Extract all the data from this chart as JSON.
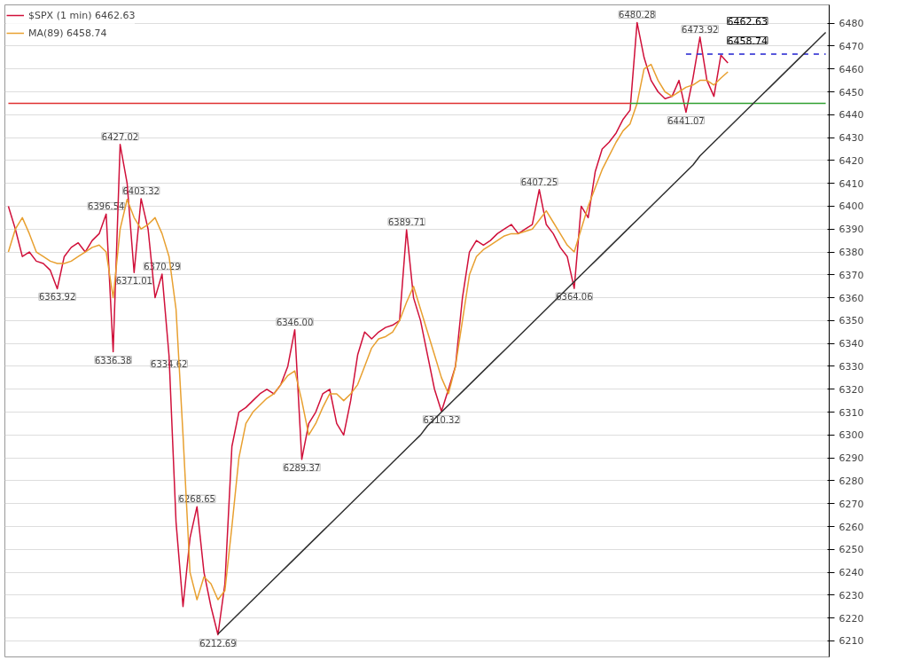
{
  "chart_data": {
    "type": "line",
    "categories": [
      null,
      null,
      null,
      null,
      null,
      null,
      null,
      null,
      null,
      null,
      null,
      null,
      null,
      null,
      null,
      null,
      null,
      null,
      null,
      null,
      null,
      null,
      null,
      null,
      null,
      null,
      null,
      null,
      null,
      null,
      null,
      null,
      null,
      null,
      null,
      null,
      null,
      null,
      null,
      null,
      null,
      null,
      null,
      null,
      null,
      null,
      null,
      null,
      null,
      null,
      null,
      null,
      null,
      null,
      null,
      null,
      null,
      null,
      null,
      null,
      null,
      null,
      null,
      null,
      null,
      null,
      null,
      null,
      null,
      null,
      null,
      null,
      null,
      null,
      null,
      null,
      null,
      null,
      null,
      null,
      null,
      null,
      null,
      null,
      null,
      null,
      null,
      null,
      null,
      null,
      null,
      null,
      null,
      null,
      null,
      null,
      null,
      null,
      null,
      null,
      null,
      null,
      null,
      null,
      null,
      null,
      null,
      null,
      null,
      null,
      null,
      null,
      null,
      null,
      null,
      null,
      null,
      null
    ],
    "ylim": [
      6203,
      6488
    ],
    "yticks": [
      6210,
      6220,
      6230,
      6240,
      6250,
      6260,
      6270,
      6280,
      6290,
      6300,
      6310,
      6320,
      6330,
      6340,
      6350,
      6360,
      6370,
      6380,
      6390,
      6400,
      6410,
      6420,
      6430,
      6440,
      6450,
      6460,
      6470,
      6480
    ],
    "tick_labels": "y",
    "grid": "y",
    "legend": "top left",
    "series": [
      {
        "name": "$SPX (1 min) 6462.63",
        "color": "#d0103a",
        "values": [
          6400,
          6390,
          6378,
          6380,
          6376,
          6375,
          6372,
          6363.92,
          6378,
          6382,
          6384,
          6380,
          6385,
          6388,
          6396.54,
          6336.38,
          6427.02,
          6410,
          6371.01,
          6403.32,
          6390,
          6360,
          6370.29,
          6334.62,
          6262,
          6225,
          6255,
          6268.65,
          6240,
          6225,
          6212.69,
          6235,
          6295,
          6310,
          6312,
          6315,
          6318,
          6320,
          6318,
          6322,
          6330,
          6346.0,
          6289.37,
          6305,
          6310,
          6318,
          6320,
          6305,
          6300,
          6315,
          6335,
          6345,
          6342,
          6345,
          6347,
          6348,
          6350,
          6389.71,
          6360,
          6350,
          6335,
          6320,
          6310.32,
          6320,
          6330,
          6360,
          6380,
          6385,
          6383,
          6385,
          6388,
          6390,
          6392,
          6388,
          6390,
          6392,
          6407.25,
          6392,
          6388,
          6382,
          6378,
          6364.06,
          6400,
          6395,
          6415,
          6425,
          6428,
          6432,
          6438,
          6442,
          6480.28,
          6465,
          6455,
          6450,
          6447,
          6448,
          6455,
          6441.07,
          6456,
          6473.92,
          6455,
          6448,
          6466,
          6462.63,
          null,
          null,
          null,
          null,
          null,
          null,
          null,
          null,
          null,
          null,
          null,
          null,
          null,
          null
        ],
        "value_labels": [
          null,
          null,
          null,
          null,
          null,
          null,
          null,
          "6363.92",
          null,
          null,
          null,
          null,
          null,
          null,
          "6396.54",
          "6336.38",
          "6427.02",
          null,
          "6371.01",
          "6403.32",
          null,
          null,
          "6370.29",
          "6334.62",
          null,
          null,
          null,
          "6268.65",
          null,
          null,
          "6212.69",
          null,
          null,
          null,
          null,
          null,
          null,
          null,
          null,
          null,
          null,
          "6346.00",
          "6289.37",
          null,
          null,
          null,
          null,
          null,
          null,
          null,
          null,
          null,
          null,
          null,
          null,
          null,
          null,
          "6389.71",
          null,
          null,
          null,
          null,
          "6310.32",
          null,
          null,
          null,
          null,
          null,
          null,
          null,
          null,
          null,
          null,
          null,
          null,
          null,
          "6407.25",
          null,
          null,
          null,
          null,
          "6364.06",
          null,
          null,
          null,
          null,
          null,
          null,
          null,
          null,
          "6480.28",
          null,
          null,
          null,
          null,
          null,
          null,
          "6441.07",
          null,
          "6473.92",
          null,
          null,
          null,
          null,
          null,
          null,
          null,
          null,
          null,
          null,
          null,
          null,
          null,
          null,
          null,
          null,
          null,
          null
        ]
      },
      {
        "name": "MA(89) 6458.74",
        "color": "#e8a030",
        "values": [
          6380,
          6390,
          6395,
          6388,
          6380,
          6378,
          6376,
          6375,
          6375,
          6376,
          6378,
          6380,
          6382,
          6383,
          6380,
          6360,
          6390,
          6403,
          6395,
          6390,
          6392,
          6395,
          6388,
          6378,
          6355,
          6300,
          6240,
          6228,
          6238,
          6235,
          6228,
          6232,
          6260,
          6290,
          6305,
          6310,
          6313,
          6316,
          6318,
          6322,
          6326,
          6328,
          6315,
          6300,
          6305,
          6312,
          6318,
          6318,
          6315,
          6318,
          6322,
          6330,
          6338,
          6342,
          6343,
          6345,
          6350,
          6358,
          6365,
          6355,
          6345,
          6335,
          6325,
          6318,
          6330,
          6350,
          6370,
          6378,
          6381,
          6383,
          6385,
          6387,
          6388,
          6388,
          6389,
          6390,
          6394,
          6398,
          6393,
          6388,
          6383,
          6380,
          6390,
          6400,
          6408,
          6416,
          6422,
          6428,
          6433,
          6436,
          6445,
          6460,
          6462,
          6455,
          6450,
          6448,
          6450,
          6452,
          6453,
          6455,
          6455,
          6453,
          6456,
          6458.74,
          null,
          null,
          null,
          null,
          null,
          null,
          null,
          null,
          null,
          null,
          null,
          null,
          null,
          null
        ]
      },
      {
        "color": "#e03030",
        "values": [
          6445,
          6445,
          6445,
          6445,
          6445,
          6445,
          6445,
          6445,
          6445,
          6445,
          6445,
          6445,
          6445,
          6445,
          6445,
          6445,
          6445,
          6445,
          6445,
          6445,
          6445,
          6445,
          6445,
          6445,
          6445,
          6445,
          6445,
          6445,
          6445,
          6445,
          6445,
          6445,
          6445,
          6445,
          6445,
          6445,
          6445,
          6445,
          6445,
          6445,
          6445,
          6445,
          6445,
          6445,
          6445,
          6445,
          6445,
          6445,
          6445,
          6445,
          6445,
          6445,
          6445,
          6445,
          6445,
          6445,
          6445,
          6445,
          6445,
          6445,
          6445,
          6445,
          6445,
          6445,
          6445,
          6445,
          6445,
          6445,
          6445,
          6445,
          6445,
          6445,
          6445,
          6445,
          6445,
          6445,
          6445,
          6445,
          6445,
          6445,
          6445,
          6445,
          6445,
          6445,
          6445,
          6445,
          6445,
          6445,
          6445,
          6445,
          null,
          null,
          null,
          null,
          null,
          null,
          null,
          null,
          null,
          null,
          null,
          null,
          null,
          null,
          null,
          null,
          null,
          null,
          null,
          null,
          null,
          null,
          null,
          null,
          null,
          null,
          null,
          null
        ]
      },
      {
        "color": "#30a030",
        "values": [
          null,
          null,
          null,
          null,
          null,
          null,
          null,
          null,
          null,
          null,
          null,
          null,
          null,
          null,
          null,
          null,
          null,
          null,
          null,
          null,
          null,
          null,
          null,
          null,
          null,
          null,
          null,
          null,
          null,
          null,
          null,
          null,
          null,
          null,
          null,
          null,
          null,
          null,
          null,
          null,
          null,
          null,
          null,
          null,
          null,
          null,
          null,
          null,
          null,
          null,
          null,
          null,
          null,
          null,
          null,
          null,
          null,
          null,
          null,
          null,
          null,
          null,
          null,
          null,
          null,
          null,
          null,
          null,
          null,
          null,
          null,
          null,
          null,
          null,
          null,
          null,
          null,
          null,
          null,
          null,
          null,
          null,
          null,
          null,
          null,
          null,
          null,
          null,
          null,
          6445,
          6445,
          6445,
          6445,
          6445,
          6445,
          6445,
          6445,
          6445,
          6445,
          6445,
          6445,
          6445,
          6445,
          6445,
          6445,
          6445,
          6445,
          6445,
          6445,
          6445,
          6445,
          6445,
          6445,
          6445,
          6445,
          6445,
          6445,
          6445
        ]
      },
      {
        "color": "#2020d0",
        "line_style": "dashed",
        "values": [
          null,
          null,
          null,
          null,
          null,
          null,
          null,
          null,
          null,
          null,
          null,
          null,
          null,
          null,
          null,
          null,
          null,
          null,
          null,
          null,
          null,
          null,
          null,
          null,
          null,
          null,
          null,
          null,
          null,
          null,
          null,
          null,
          null,
          null,
          null,
          null,
          null,
          null,
          null,
          null,
          null,
          null,
          null,
          null,
          null,
          null,
          null,
          null,
          null,
          null,
          null,
          null,
          null,
          null,
          null,
          null,
          null,
          null,
          null,
          null,
          null,
          null,
          null,
          null,
          null,
          null,
          null,
          null,
          null,
          null,
          null,
          null,
          null,
          null,
          null,
          null,
          null,
          null,
          null,
          null,
          null,
          null,
          null,
          null,
          null,
          null,
          null,
          null,
          null,
          null,
          null,
          null,
          null,
          null,
          null,
          null,
          null,
          6466.5,
          6466.5,
          6466.5,
          6466.5,
          6466.5,
          6466.5,
          6466.5,
          6466.5,
          6466.5,
          6466.5,
          6466.5,
          6466.5,
          6466.5,
          6466.5,
          6466.5,
          6466.5,
          6466.5,
          6466.5,
          6466.5,
          6466.5,
          6466.5
        ]
      },
      {
        "color": "#303030",
        "values": [
          null,
          null,
          null,
          null,
          null,
          null,
          null,
          null,
          null,
          null,
          null,
          null,
          null,
          null,
          null,
          null,
          null,
          null,
          null,
          null,
          null,
          null,
          null,
          null,
          null,
          null,
          null,
          null,
          null,
          null,
          6213,
          6216,
          6219,
          6222,
          6225,
          6228,
          6231,
          6234,
          6237,
          6240,
          6243,
          6246,
          6249,
          6252,
          6255,
          6258,
          6261,
          6264,
          6267,
          6270,
          6273,
          6276,
          6279,
          6282,
          6285,
          6288,
          6291,
          6294,
          6297,
          6300,
          6304,
          6307,
          6310,
          6313,
          6316,
          6319,
          6322,
          6325,
          6328,
          6331,
          6334,
          6337,
          6340,
          6343,
          6346,
          6349,
          6352,
          6355,
          6358,
          6361,
          6364,
          6367,
          6370,
          6373,
          6376,
          6379,
          6382,
          6385,
          6388,
          6391,
          6394,
          6397,
          6400,
          6403,
          6406,
          6409,
          6412,
          6415,
          6418,
          6422,
          6425,
          6428,
          6431,
          6434,
          6437,
          6440,
          6443,
          6446,
          6449,
          6452,
          6455,
          6458,
          6461,
          6464,
          6467,
          6470,
          6473,
          6476
        ]
      }
    ],
    "annotations": [
      "6462.63",
      "6458.74"
    ]
  }
}
